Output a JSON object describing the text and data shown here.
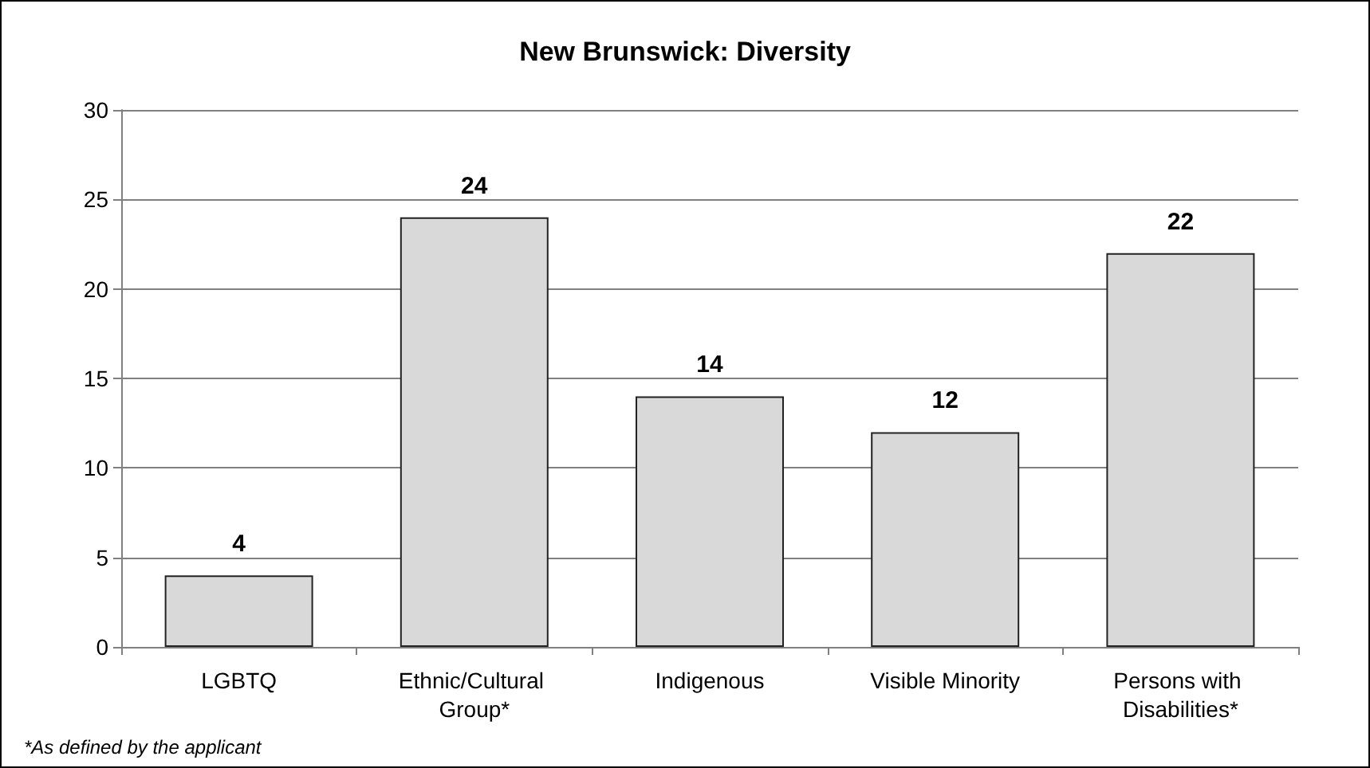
{
  "chart_data": {
    "type": "bar",
    "title": "New Brunswick: Diversity",
    "categories": [
      "LGBTQ",
      "Ethnic/Cultural Group*",
      "Indigenous",
      "Visible Minority",
      "Persons with Disabilities*"
    ],
    "values": [
      4,
      24,
      14,
      12,
      22
    ],
    "color": "#d9d9d9",
    "ylim": [
      0,
      30
    ],
    "yticks": [
      0,
      5,
      10,
      15,
      20,
      25,
      30
    ],
    "grid": "y",
    "data_labels": true,
    "annotations": [
      "*As defined by the applicant"
    ]
  }
}
